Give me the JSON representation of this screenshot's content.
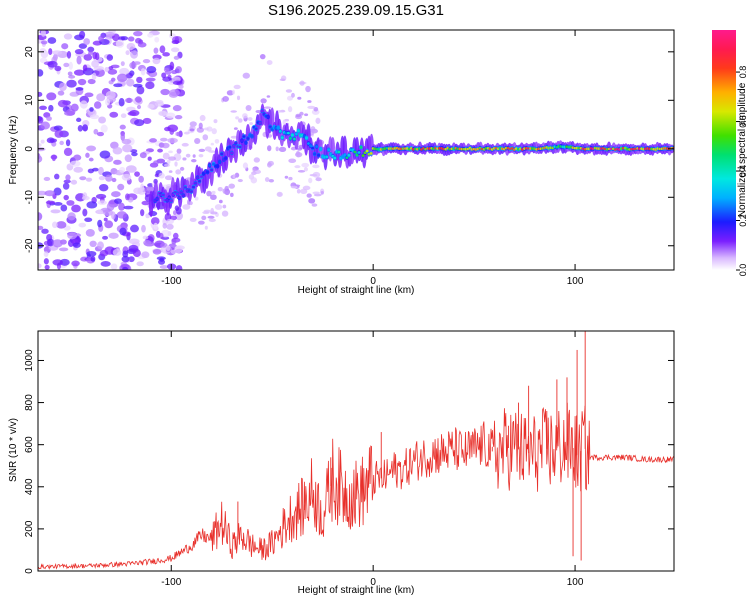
{
  "title": "S196.2025.239.09.15.G31",
  "chart_data": [
    {
      "type": "heatmap",
      "title": "S196.2025.239.09.15.G31",
      "xlabel": "Height of straight line (km)",
      "ylabel": "Frequency (Hz)",
      "xlim": [
        -166,
        149
      ],
      "ylim": [
        -25,
        24.5
      ],
      "xticks": [
        -100,
        0,
        100
      ],
      "yticks": [
        -20,
        -10,
        0,
        10,
        20
      ],
      "colorbar": {
        "label": "Normalized spectral amplitude",
        "range": [
          0,
          0.97
        ],
        "ticks": [
          "0.0",
          "0.2",
          "0.4",
          "0.6",
          "0.8"
        ],
        "colormap": "rainbow (white to violet to blue to cyan to green to yellow to red to magenta)"
      },
      "trace": {
        "description": "Dominant frequency trace vs height",
        "height_km": [
          -100,
          -90,
          -80,
          -70,
          -60,
          -55,
          -50,
          -45,
          -40,
          -35,
          -30,
          -25,
          -20,
          -10,
          0,
          20,
          40,
          60,
          80,
          95,
          105,
          120,
          149
        ],
        "frequency_hz": [
          -10,
          -8,
          -4,
          0,
          3,
          7,
          5,
          3,
          3,
          3,
          0,
          -1,
          -1,
          -1,
          0,
          0,
          0,
          0,
          0,
          0.5,
          0,
          0,
          0
        ],
        "amplitude": [
          0.15,
          0.2,
          0.25,
          0.2,
          0.25,
          0.15,
          0.3,
          0.4,
          0.45,
          0.4,
          0.3,
          0.35,
          0.4,
          0.5,
          0.7,
          0.85,
          0.85,
          0.8,
          0.9,
          0.5,
          0.95,
          0.95,
          0.9
        ]
      },
      "noise_region_km": [
        -166,
        -105
      ]
    },
    {
      "type": "line",
      "title": "",
      "xlabel": "Height of straight line (km)",
      "ylabel": "SNR (10 * v/v)",
      "xlim": [
        -166,
        149
      ],
      "ylim": [
        0,
        1140
      ],
      "xticks": [
        -100,
        0,
        100
      ],
      "yticks": [
        0,
        200,
        400,
        600,
        800,
        1000
      ],
      "series": [
        {
          "name": "SNR",
          "color": "#e8302b",
          "x": [
            -166,
            -140,
            -120,
            -110,
            -100,
            -95,
            -90,
            -85,
            -80,
            -75,
            -70,
            -65,
            -60,
            -55,
            -50,
            -45,
            -40,
            -35,
            -30,
            -25,
            -20,
            -15,
            -10,
            -5,
            0,
            5,
            10,
            15,
            20,
            25,
            30,
            35,
            40,
            45,
            50,
            55,
            60,
            65,
            70,
            75,
            80,
            85,
            90,
            95,
            100,
            102,
            104,
            106,
            108,
            115,
            125,
            135,
            149
          ],
          "y": [
            20,
            25,
            35,
            45,
            60,
            90,
            120,
            170,
            150,
            230,
            120,
            170,
            120,
            100,
            130,
            200,
            270,
            300,
            380,
            260,
            440,
            380,
            360,
            380,
            440,
            440,
            480,
            480,
            520,
            540,
            560,
            560,
            580,
            560,
            580,
            600,
            560,
            580,
            590,
            560,
            560,
            580,
            580,
            600,
            580,
            520,
            620,
            540,
            540,
            540,
            540,
            530,
            530
          ]
        }
      ],
      "spikes": {
        "x": [
          -67,
          -34,
          -21,
          4,
          59,
          67,
          72,
          77,
          86,
          91,
          96,
          99,
          101,
          103,
          105
        ],
        "y": [
          330,
          290,
          540,
          660,
          590,
          690,
          800,
          880,
          760,
          910,
          920,
          70,
          1050,
          50,
          1140
        ]
      }
    }
  ]
}
